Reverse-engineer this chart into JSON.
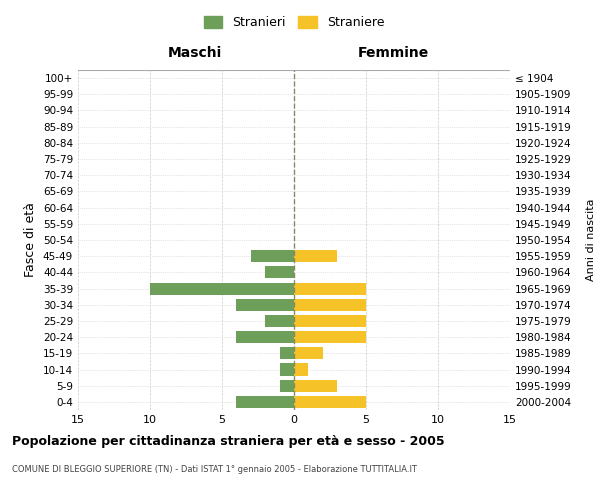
{
  "age_groups": [
    "100+",
    "95-99",
    "90-94",
    "85-89",
    "80-84",
    "75-79",
    "70-74",
    "65-69",
    "60-64",
    "55-59",
    "50-54",
    "45-49",
    "40-44",
    "35-39",
    "30-34",
    "25-29",
    "20-24",
    "15-19",
    "10-14",
    "5-9",
    "0-4"
  ],
  "birth_years": [
    "≤ 1904",
    "1905-1909",
    "1910-1914",
    "1915-1919",
    "1920-1924",
    "1925-1929",
    "1930-1934",
    "1935-1939",
    "1940-1944",
    "1945-1949",
    "1950-1954",
    "1955-1959",
    "1960-1964",
    "1965-1969",
    "1970-1974",
    "1975-1979",
    "1980-1984",
    "1985-1989",
    "1990-1994",
    "1995-1999",
    "2000-2004"
  ],
  "maschi": [
    0,
    0,
    0,
    0,
    0,
    0,
    0,
    0,
    0,
    0,
    0,
    3,
    2,
    10,
    4,
    2,
    4,
    1,
    1,
    1,
    4
  ],
  "femmine": [
    0,
    0,
    0,
    0,
    0,
    0,
    0,
    0,
    0,
    0,
    0,
    3,
    0,
    5,
    5,
    5,
    5,
    2,
    1,
    3,
    5
  ],
  "male_color": "#6d9e5a",
  "female_color": "#f5c327",
  "bar_height": 0.75,
  "xlim": 15,
  "title": "Popolazione per cittadinanza straniera per età e sesso - 2005",
  "subtitle": "COMUNE DI BLEGGIO SUPERIORE (TN) - Dati ISTAT 1° gennaio 2005 - Elaborazione TUTTITALIA.IT",
  "ylabel_left": "Fasce di età",
  "ylabel_right": "Anni di nascita",
  "xlabel_maschi": "Maschi",
  "xlabel_femmine": "Femmine",
  "legend_stranieri": "Stranieri",
  "legend_straniere": "Straniere",
  "xticks": [
    -15,
    -10,
    -5,
    0,
    5,
    10,
    15
  ],
  "xticklabels": [
    "15",
    "10",
    "5",
    "0",
    "5",
    "10",
    "15"
  ],
  "background_color": "#ffffff",
  "grid_color": "#cccccc",
  "center_line_color": "#888866"
}
